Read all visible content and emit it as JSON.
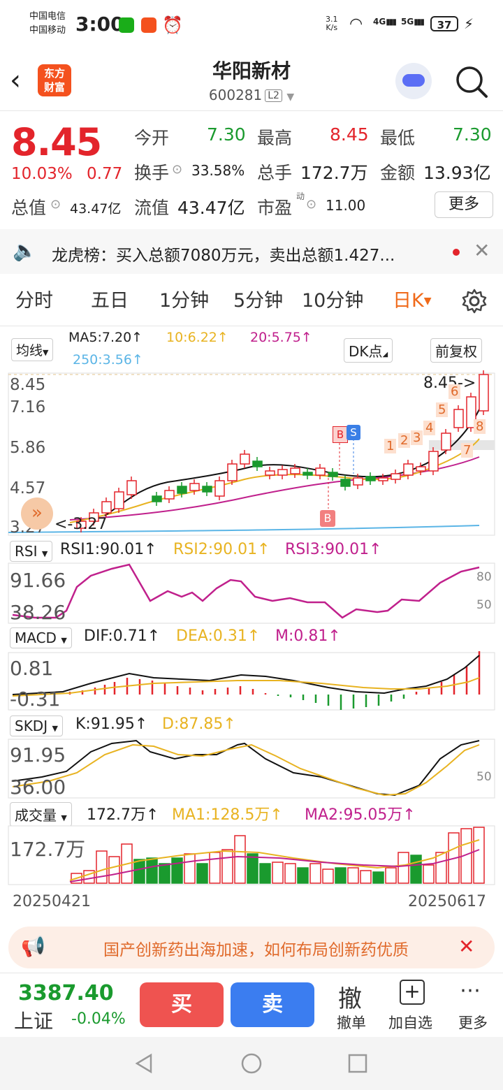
{
  "status_bar": {
    "carrier1": "中国电信",
    "carrier2": "中国移动",
    "time": "3:00",
    "net_speed_top": "3.1",
    "net_speed_bottom": "K/s",
    "sig1": "4G",
    "sig2": "5G",
    "battery": "37"
  },
  "header": {
    "logo_line1": "东方",
    "logo_line2": "财富",
    "title": "华阳新材",
    "code": "600281",
    "level": "L2"
  },
  "quote": {
    "price": "8.45",
    "change_pct": "10.03%",
    "change": "0.77",
    "open_label": "今开",
    "open": "7.30",
    "high_label": "最高",
    "high": "8.45",
    "low_label": "最低",
    "low": "7.30",
    "turnover_label": "换手",
    "turnover": "33.58%",
    "volume_label": "总手",
    "volume": "172.7万",
    "amount_label": "金额",
    "amount": "13.93亿",
    "mktcap_label": "总值",
    "mktcap": "43.47亿",
    "float_label": "流值",
    "float": "43.47亿",
    "pe_label": "市盈",
    "pe_sup": "动",
    "pe": "11.00",
    "more": "更多"
  },
  "announcement": {
    "text": "龙虎榜：买入总额7080万元，卖出总额1.427..."
  },
  "tabs": [
    "分时",
    "五日",
    "1分钟",
    "5分钟",
    "10分钟",
    "日K"
  ],
  "kline": {
    "ma_selector": "均线",
    "ma5": "MA5:7.20↑",
    "ma10": "10:6.22↑",
    "ma20": "20:5.75↑",
    "ma250": "250:3.56↑",
    "dk_button": "DK点",
    "adjust_button": "前复权",
    "y_labels": [
      "8.45",
      "7.16",
      "5.86",
      "4.57",
      "3.27"
    ],
    "low_marker": "<-3.27",
    "high_marker": "8.45->",
    "signal_b1": "B",
    "signal_s": "S",
    "signal_b2": "B",
    "counts": [
      "1",
      "2",
      "3",
      "4",
      "5",
      "6",
      "7",
      "8"
    ],
    "colors": {
      "up": "#e3242b",
      "down": "#1a9a2e",
      "ma5": "#111111",
      "ma10": "#e8b321",
      "ma20": "#c0208c",
      "ma250": "#5bb5e6"
    }
  },
  "rsi": {
    "selector": "RSI",
    "rsi1": "RSI1:90.01↑",
    "rsi2": "RSI2:90.01↑",
    "rsi3": "RSI3:90.01↑",
    "y_top": "91.66",
    "y_bottom": "38.26",
    "ref_80": "80",
    "ref_50": "50"
  },
  "macd": {
    "selector": "MACD",
    "dif": "DIF:0.71↑",
    "dea": "DEA:0.31↑",
    "m": "M:0.81↑",
    "y_top": "0.81",
    "y_bottom": "-0.31"
  },
  "skdj": {
    "selector": "SKDJ",
    "k": "K:91.95↑",
    "d": "D:87.85↑",
    "y_top": "91.95",
    "y_bottom": "36.00",
    "ref_50": "50"
  },
  "volume": {
    "selector": "成交量",
    "value": "172.7万↑",
    "ma1": "MA1:128.5万↑",
    "ma2": "MA2:95.05万↑",
    "y_top": "172.7万",
    "date_start": "20250421",
    "date_end": "20250617"
  },
  "promo": {
    "text": "国产创新药出海加速，如何布局创新药优质"
  },
  "bottom_bar": {
    "index_value": "3387.40",
    "index_name": "上证",
    "index_change": "-0.04%",
    "buy": "买",
    "sell": "卖",
    "cancel_icon": "撤",
    "cancel": "撤单",
    "watch": "加自选",
    "more": "更多"
  }
}
